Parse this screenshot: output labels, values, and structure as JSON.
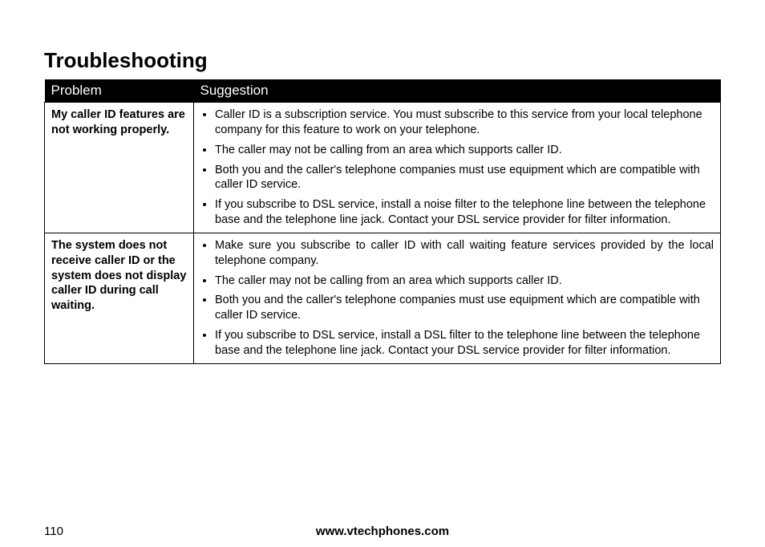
{
  "title": "Troubleshooting",
  "table": {
    "headers": {
      "problem": "Problem",
      "suggestion": "Suggestion"
    },
    "rows": [
      {
        "problem": "My caller ID features are not working properly.",
        "suggestions": [
          "Caller ID is a subscription service. You must subscribe to this service from your local telephone company for this feature to work on your telephone.",
          "The caller may not be calling from an area which supports caller ID.",
          "Both you and the caller's telephone companies must use equipment which are compatible with caller ID service.",
          "If you subscribe to DSL service, install a noise filter to the telephone line between the telephone base and the telephone line jack. Contact your DSL service provider for filter information."
        ]
      },
      {
        "problem": "The system does not receive caller ID or the system does not display caller ID during call waiting.",
        "suggestions": [
          "Make sure you subscribe to caller ID with call waiting feature services provided by the local telephone company.",
          "The caller may not be calling from an area which supports caller ID.",
          "Both you and the caller's telephone companies must use equipment which are compatible with caller ID service.",
          "If you subscribe to DSL service, install a DSL filter to the telephone line between the telephone base and the telephone line jack. Contact your DSL service provider for filter information."
        ]
      }
    ]
  },
  "footer": {
    "page": "110",
    "url": "www.vtechphones.com"
  }
}
